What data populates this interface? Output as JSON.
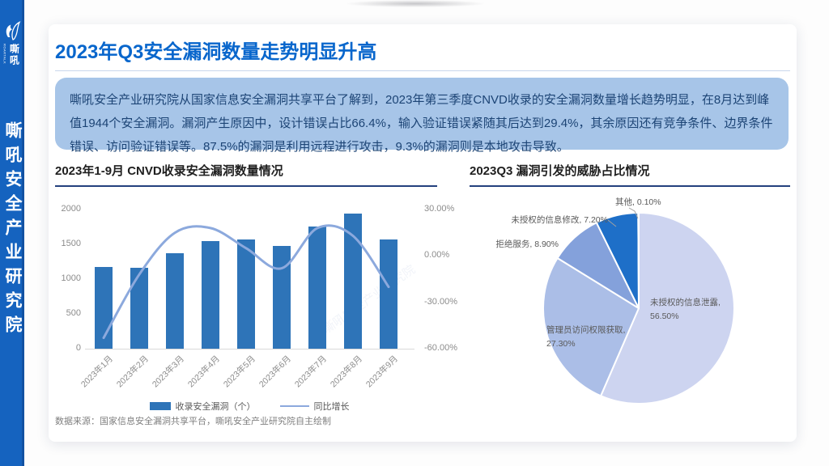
{
  "sidebar": {
    "brand_cn": "嘶吼",
    "brand_en": "ROARTALK",
    "vertical_text": "嘶吼安全产业研究院"
  },
  "header": {
    "title": "2023年Q3安全漏洞数量走势明显升高"
  },
  "summary": {
    "text": "嘶吼安全产业研究院从国家信息安全漏洞共享平台了解到，2023年第三季度CNVD收录的安全漏洞数量增长趋势明显，在8月达到峰值1944个安全漏洞。漏洞产生原因中，设计错误占比66.4%，输入验证错误紧随其后达到29.4%，其余原因还有竞争条件、边界条件错误、访问验证错误等。87.5%的漏洞是利用远程进行攻击，9.3%的漏洞则是本地攻击导致。"
  },
  "watermark": "嘶吼安全产业研究院",
  "colors": {
    "accent": "#0866CC",
    "sidebar": "#1563BF",
    "bar": "#2E74B8",
    "line": "#8CA9DD",
    "summary_bg": "#A7C5E8",
    "summary_text": "#1C4475"
  },
  "chart_data": [
    {
      "type": "bar",
      "title": "2023年1-9月 CNVD收录安全漏洞数量情况",
      "categories": [
        "2023年1月",
        "2023年2月",
        "2023年3月",
        "2023年4月",
        "2023年5月",
        "2023年6月",
        "2023年7月",
        "2023年8月",
        "2023年9月"
      ],
      "series": [
        {
          "name": "收录安全漏洞（个）",
          "type": "bar",
          "axis": "left",
          "color": "#2E74B8",
          "values": [
            1175,
            1160,
            1370,
            1550,
            1575,
            1480,
            1760,
            1944,
            1570
          ]
        },
        {
          "name": "同比增长",
          "type": "line",
          "axis": "right",
          "unit": "%",
          "color": "#8CA9DD",
          "values": [
            -53,
            -12,
            15,
            18,
            5,
            -8,
            18,
            13,
            -20
          ]
        }
      ],
      "left_axis": {
        "min": 0,
        "max": 2000,
        "ticks": [
          "2000",
          "1500",
          "1000",
          "500",
          "0"
        ]
      },
      "right_axis": {
        "min": -60,
        "max": 30,
        "ticks": [
          "30.00%",
          "0.00%",
          "-30.00%",
          "-60.00%"
        ]
      },
      "grid": false,
      "legend_position": "bottom"
    },
    {
      "type": "pie",
      "title": "2023Q3 漏洞引发的威胁占比情况",
      "slices": [
        {
          "label": "未授权的信息泄露",
          "label_text": "未授权的信息泄露,",
          "pct_text": "56.50%",
          "value": 56.5,
          "color": "#CDD4F0"
        },
        {
          "label": "管理员访问权限获取",
          "label_text": "管理员访问权限获取,",
          "pct_text": "27.30%",
          "value": 27.3,
          "color": "#ABBEE7"
        },
        {
          "label": "拒绝服务",
          "label_text": "拒绝服务,",
          "pct_text": "8.90%",
          "value": 8.9,
          "color": "#84A1DB"
        },
        {
          "label": "未授权的信息修改",
          "label_text": "未授权的信息修改,",
          "pct_text": "7.20%",
          "value": 7.2,
          "color": "#1E6FC8"
        },
        {
          "label": "其他",
          "label_text": "其他,",
          "pct_text": "0.10%",
          "value": 0.1,
          "color": "#2E74B8"
        }
      ]
    }
  ],
  "charts": {
    "bar_title": "2023年1-9月 CNVD收录安全漏洞数量情况",
    "pie_title": "2023Q3 漏洞引发的威胁占比情况"
  },
  "footer": {
    "source": "数据来源：国家信息安全漏洞共享平台，嘶吼安全产业研究院自主绘制"
  }
}
